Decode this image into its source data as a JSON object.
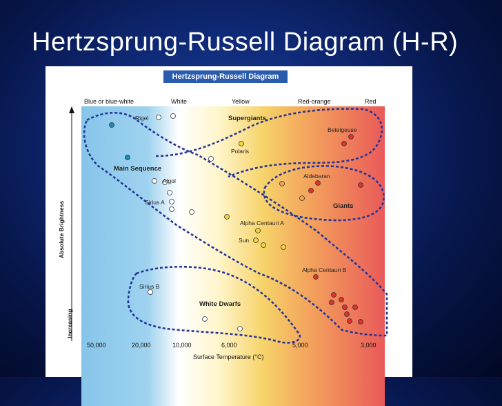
{
  "slide_title": "Hertzsprung-Russell Diagram (H-R)",
  "diagram": {
    "header": "Hertzsprung-Russell Diagram",
    "color_labels": [
      "Blue or blue-white",
      "White",
      "Yellow",
      "Red-orange",
      "Red"
    ],
    "region_labels": {
      "supergiants": "Supergiants",
      "main_sequence": "Main Sequence",
      "giants": "Giants",
      "white_dwarfs": "White Dwarfs"
    },
    "star_labels": {
      "rigel": "Rigel",
      "betelgeuse": "Betelgeuse",
      "polaris": "Polaris",
      "aldebaran": "Aldebaran",
      "algol": "Algol",
      "sirius_a": "Sirius A",
      "alpha_centauri_a": "Alpha Centauri A",
      "sun": "Sun",
      "alpha_centauri_b": "Alpha Centauri B",
      "sirius_b": "Sirius B"
    },
    "x_ticks": [
      "50,000",
      "20,000",
      "10,000",
      "6,000",
      "5,000",
      "3,000"
    ],
    "x_title": "Surface Temperature (°C)",
    "y_title": "Absolute Brightness",
    "y_increasing": "Increasing",
    "colors": {
      "blue_star": "#1a8cb3",
      "white_star": "#ffffff",
      "yellow_star": "#f5d33f",
      "red_star": "#e03030",
      "dash": "#23359a"
    }
  }
}
